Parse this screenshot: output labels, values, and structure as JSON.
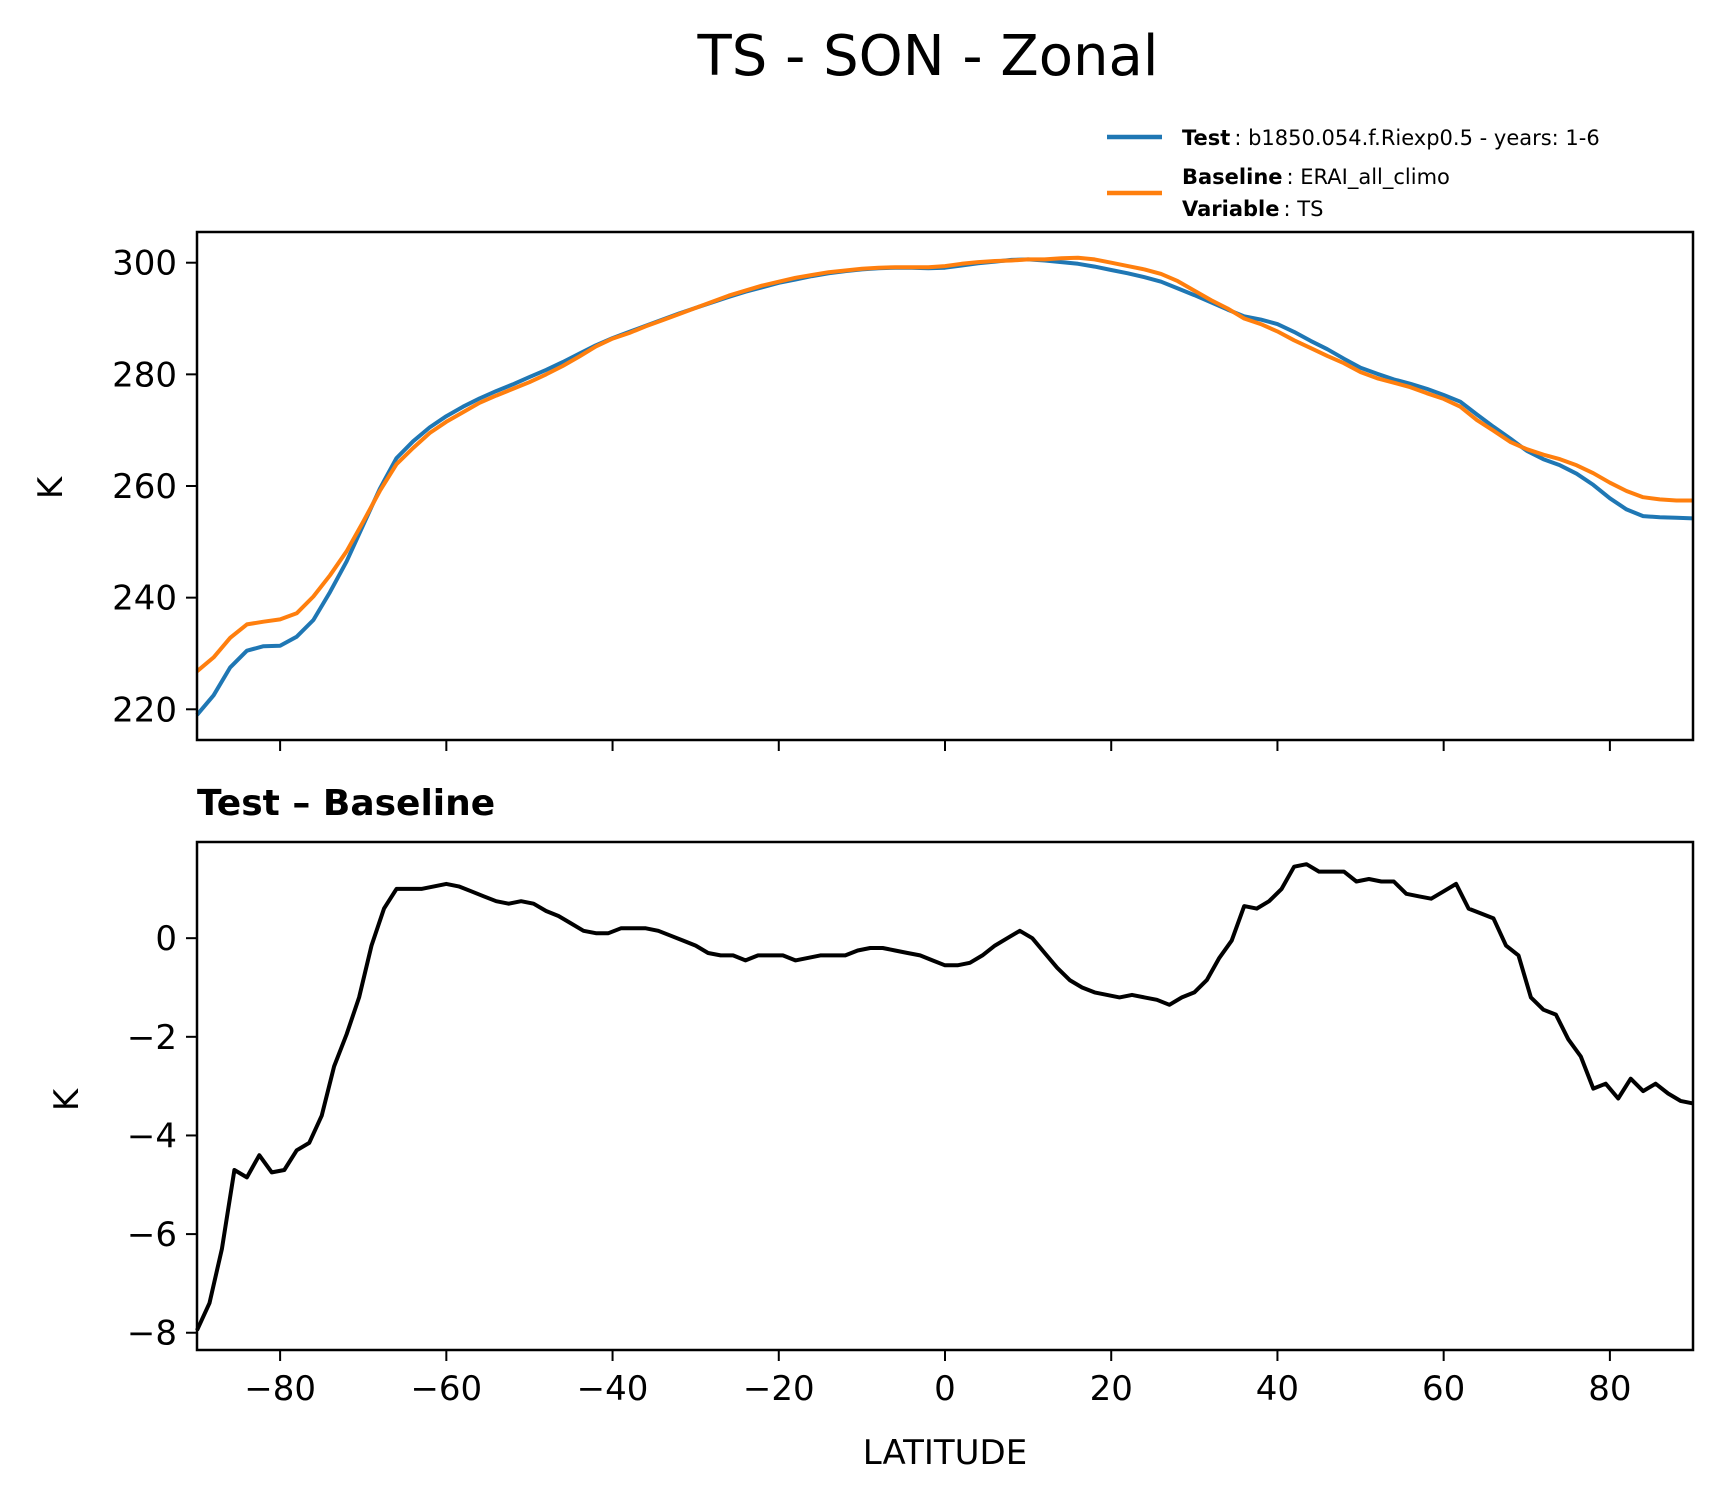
{
  "chart_data": {
    "title": "TS - SON - Zonal",
    "type": "line",
    "legend": {
      "placement": "top-right",
      "entries": [
        {
          "key_bold": "Test",
          "text": ": b1850.054.f.Riexp0.5 - years: 1-6",
          "color": "#1f77b4"
        },
        {
          "key_bold": "Baseline",
          "text": ": ERAI_all_climo",
          "color": "#ff7f0e"
        },
        {
          "key_bold": "Variable",
          "text": ": TS",
          "color": ""
        }
      ]
    },
    "panels": [
      {
        "id": "top",
        "ylabel": "K",
        "xlim": [
          -90,
          90
        ],
        "ylim": [
          214.5,
          305.5
        ],
        "yticks": [
          220,
          240,
          260,
          280,
          300
        ],
        "ytick_labels": [
          "220",
          "240",
          "260",
          "280",
          "300"
        ],
        "x": [
          -90,
          -88,
          -86,
          -84,
          -82,
          -80,
          -78,
          -76,
          -74,
          -72,
          -70,
          -68,
          -66,
          -64,
          -62,
          -60,
          -58,
          -56,
          -54,
          -52,
          -50,
          -48,
          -46,
          -44,
          -42,
          -40,
          -38,
          -36,
          -34,
          -32,
          -30,
          -28,
          -26,
          -24,
          -22,
          -20,
          -18,
          -16,
          -14,
          -12,
          -10,
          -8,
          -6,
          -4,
          -2,
          0,
          2,
          4,
          6,
          8,
          10,
          12,
          14,
          16,
          18,
          20,
          22,
          24,
          26,
          28,
          30,
          32,
          34,
          36,
          38,
          40,
          42,
          44,
          46,
          48,
          50,
          52,
          54,
          56,
          58,
          60,
          62,
          64,
          66,
          68,
          70,
          72,
          74,
          76,
          78,
          80,
          82,
          84,
          86,
          88,
          90
        ],
        "series": [
          {
            "name": "Test",
            "color": "#1f77b4",
            "values": [
              219.0,
              222.5,
              227.5,
              230.5,
              231.3,
              231.4,
              233.0,
              236.0,
              241.0,
              246.5,
              253.0,
              259.5,
              265.0,
              268.0,
              270.5,
              272.5,
              274.2,
              275.7,
              277.0,
              278.2,
              279.5,
              280.8,
              282.2,
              283.7,
              285.2,
              286.5,
              287.6,
              288.7,
              289.8,
              290.9,
              291.9,
              292.9,
              293.9,
              294.8,
              295.6,
              296.4,
              297.0,
              297.6,
              298.1,
              298.5,
              298.8,
              299.0,
              299.1,
              299.1,
              299.0,
              299.1,
              299.5,
              299.9,
              300.2,
              300.5,
              300.6,
              300.4,
              300.1,
              299.8,
              299.3,
              298.7,
              298.1,
              297.4,
              296.6,
              295.4,
              294.2,
              292.9,
              291.6,
              290.4,
              289.8,
              289.0,
              287.6,
              286.0,
              284.5,
              282.8,
              281.2,
              280.1,
              279.1,
              278.3,
              277.4,
              276.3,
              275.1,
              272.8,
              270.6,
              268.5,
              266.3,
              264.8,
              263.7,
              262.2,
              260.2,
              257.8,
              255.8,
              254.6,
              254.4,
              254.3,
              254.2
            ]
          },
          {
            "name": "Baseline",
            "color": "#ff7f0e",
            "values": [
              226.8,
              229.3,
              232.8,
              235.2,
              235.7,
              236.1,
              237.2,
              240.2,
              244.0,
              248.3,
              253.6,
              259.1,
              263.9,
              266.8,
              269.5,
              271.5,
              273.2,
              274.9,
              276.2,
              277.4,
              278.6,
              280.0,
              281.5,
              283.2,
              285.0,
              286.4,
              287.4,
              288.6,
              289.7,
              290.8,
              291.9,
              293.0,
              294.1,
              295.0,
              295.9,
              296.6,
              297.3,
              297.8,
              298.3,
              298.6,
              298.9,
              299.1,
              299.2,
              299.2,
              299.2,
              299.4,
              299.8,
              300.1,
              300.3,
              300.4,
              300.6,
              300.6,
              300.8,
              300.9,
              300.6,
              300.0,
              299.4,
              298.8,
              298.0,
              296.7,
              295.0,
              293.3,
              291.8,
              290.0,
              289.0,
              287.7,
              286.1,
              284.7,
              283.3,
              282.0,
              280.4,
              279.3,
              278.5,
              277.7,
              276.6,
              275.6,
              274.2,
              271.8,
              269.9,
              267.9,
              266.6,
              265.6,
              264.8,
              263.7,
              262.3,
              260.6,
              259.1,
              258.0,
              257.6,
              257.4,
              257.4
            ]
          }
        ]
      },
      {
        "id": "bottom",
        "title": "Test – Baseline",
        "ylabel": "K",
        "xlabel": "LATITUDE",
        "xlim": [
          -90,
          90
        ],
        "ylim": [
          -8.35,
          1.95
        ],
        "yticks": [
          -8,
          -6,
          -4,
          -2,
          0
        ],
        "ytick_labels": [
          "−8",
          "−6",
          "−4",
          "−2",
          "0"
        ],
        "xticks": [
          -80,
          -60,
          -40,
          -20,
          0,
          20,
          40,
          60,
          80
        ],
        "xtick_labels": [
          "−80",
          "−60",
          "−40",
          "−20",
          "0",
          "20",
          "40",
          "60",
          "80"
        ],
        "x": [
          -90,
          -88.5,
          -87,
          -85.5,
          -84,
          -82.5,
          -81,
          -79.5,
          -78,
          -76.5,
          -75,
          -73.5,
          -72,
          -70.5,
          -69,
          -67.5,
          -66,
          -64.5,
          -63,
          -61.5,
          -60,
          -58.5,
          -57,
          -55.5,
          -54,
          -52.5,
          -51,
          -49.5,
          -48,
          -46.5,
          -45,
          -43.5,
          -42,
          -40.5,
          -39,
          -37.5,
          -36,
          -34.5,
          -33,
          -31.5,
          -30,
          -28.5,
          -27,
          -25.5,
          -24,
          -22.5,
          -21,
          -19.5,
          -18,
          -16.5,
          -15,
          -13.5,
          -12,
          -10.5,
          -9,
          -7.5,
          -6,
          -4.5,
          -3,
          -1.5,
          0,
          1.5,
          3,
          4.5,
          6,
          7.5,
          9,
          10.5,
          12,
          13.5,
          15,
          16.5,
          18,
          19.5,
          21,
          22.5,
          24,
          25.5,
          27,
          28.5,
          30,
          31.5,
          33,
          34.5,
          36,
          37.5,
          39,
          40.5,
          42,
          43.5,
          45,
          46.5,
          48,
          49.5,
          51,
          52.5,
          54,
          55.5,
          57,
          58.5,
          60,
          61.5,
          63,
          64.5,
          66,
          67.5,
          69,
          70.5,
          72,
          73.5,
          75,
          76.5,
          78,
          79.5,
          81,
          82.5,
          84,
          85.5,
          87,
          88.5,
          90
        ],
        "series": [
          {
            "name": "",
            "color": "#000000",
            "values": [
              -7.95,
              -7.4,
              -6.3,
              -4.7,
              -4.85,
              -4.4,
              -4.75,
              -4.7,
              -4.3,
              -4.15,
              -3.6,
              -2.6,
              -1.95,
              -1.2,
              -0.15,
              0.6,
              1.0,
              1.0,
              1.0,
              1.05,
              1.1,
              1.05,
              0.95,
              0.85,
              0.75,
              0.7,
              0.75,
              0.7,
              0.55,
              0.45,
              0.3,
              0.15,
              0.1,
              0.1,
              0.2,
              0.2,
              0.2,
              0.15,
              0.05,
              -0.05,
              -0.15,
              -0.3,
              -0.35,
              -0.35,
              -0.45,
              -0.35,
              -0.35,
              -0.35,
              -0.45,
              -0.4,
              -0.35,
              -0.35,
              -0.35,
              -0.25,
              -0.2,
              -0.2,
              -0.25,
              -0.3,
              -0.35,
              -0.45,
              -0.55,
              -0.55,
              -0.5,
              -0.35,
              -0.15,
              0.0,
              0.15,
              0.0,
              -0.3,
              -0.6,
              -0.85,
              -1.0,
              -1.1,
              -1.15,
              -1.2,
              -1.15,
              -1.2,
              -1.25,
              -1.35,
              -1.2,
              -1.1,
              -0.85,
              -0.4,
              -0.05,
              0.65,
              0.6,
              0.75,
              1.0,
              1.45,
              1.5,
              1.35,
              1.35,
              1.35,
              1.15,
              1.2,
              1.15,
              1.15,
              0.9,
              0.85,
              0.8,
              0.95,
              1.1,
              0.6,
              0.5,
              0.4,
              -0.15,
              -0.35,
              -1.2,
              -1.45,
              -1.55,
              -2.05,
              -2.4,
              -3.05,
              -2.95,
              -3.25,
              -2.85,
              -3.1,
              -2.95,
              -3.15,
              -3.3,
              -3.35
            ]
          }
        ]
      }
    ]
  }
}
